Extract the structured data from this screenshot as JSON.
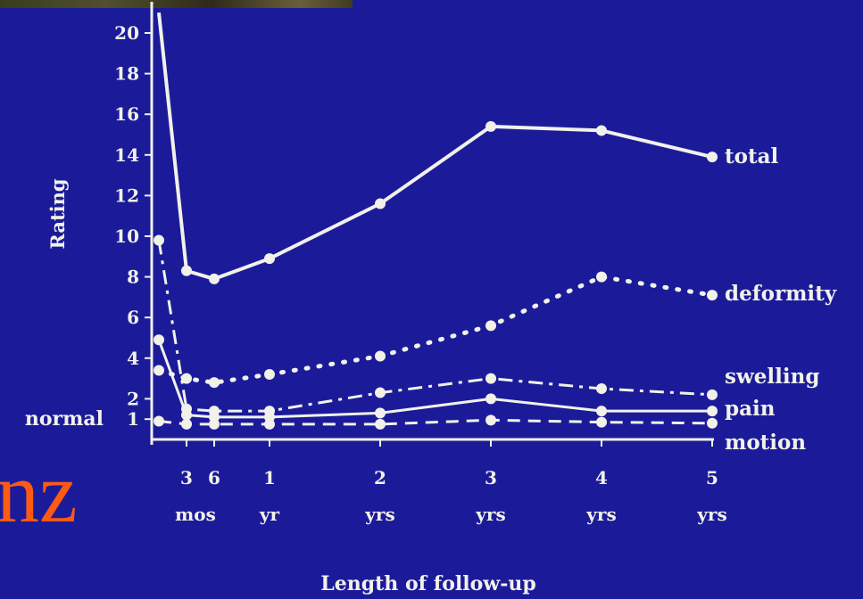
{
  "slide": {
    "title_fragment": "nz"
  },
  "chart_data": {
    "type": "line",
    "title": "",
    "xlabel": "Length of follow-up",
    "ylabel": "Rating",
    "ylim": [
      0,
      21
    ],
    "y_ticks": [
      "1",
      "2",
      "4",
      "6",
      "8",
      "10",
      "12",
      "14",
      "16",
      "18",
      "20"
    ],
    "normal_label": "normal",
    "normal_value": 1,
    "x_ticks": [
      {
        "top": "3",
        "bottom": "mos",
        "x": 0.25
      },
      {
        "top": "6",
        "bottom": "",
        "x": 0.5
      },
      {
        "top": "1",
        "bottom": "yr",
        "x": 1
      },
      {
        "top": "2",
        "bottom": "yrs",
        "x": 2
      },
      {
        "top": "3",
        "bottom": "yrs",
        "x": 3
      },
      {
        "top": "4",
        "bottom": "yrs",
        "x": 4
      },
      {
        "top": "5",
        "bottom": "yrs",
        "x": 5
      }
    ],
    "x_tick_mos": "mos",
    "series": [
      {
        "name": "total",
        "style": "solid-thick",
        "x": [
          0,
          0.25,
          0.5,
          1,
          2,
          3,
          4,
          5
        ],
        "y": [
          21,
          8.3,
          7.9,
          8.9,
          11.6,
          15.4,
          15.2,
          13.9
        ]
      },
      {
        "name": "deformity",
        "style": "dotted",
        "x": [
          0,
          0.25,
          0.5,
          1,
          2,
          3,
          4,
          5
        ],
        "y": [
          3.4,
          3.0,
          2.8,
          3.2,
          4.1,
          5.6,
          8.0,
          7.1
        ]
      },
      {
        "name": "swelling",
        "style": "dashdot",
        "x": [
          0,
          0.25,
          0.5,
          1,
          2,
          3,
          4,
          5
        ],
        "y": [
          9.8,
          1.5,
          1.4,
          1.4,
          2.3,
          3.0,
          2.5,
          2.2
        ]
      },
      {
        "name": "pain",
        "style": "solid-thin",
        "x": [
          0,
          0.25,
          0.5,
          1,
          2,
          3,
          4,
          5
        ],
        "y": [
          4.9,
          1.2,
          1.1,
          1.1,
          1.3,
          2.0,
          1.4,
          1.4
        ]
      },
      {
        "name": "motion",
        "style": "dashed",
        "x": [
          0,
          0.25,
          0.5,
          1,
          2,
          3,
          4,
          5
        ],
        "y": [
          0.9,
          0.75,
          0.75,
          0.75,
          0.75,
          0.95,
          0.85,
          0.8
        ]
      }
    ],
    "grid": false,
    "legend": "inline-right",
    "colors": {
      "background": "#1b1b9a",
      "ink": "#f1f1ea",
      "accent_text": "#ff5a14"
    }
  }
}
